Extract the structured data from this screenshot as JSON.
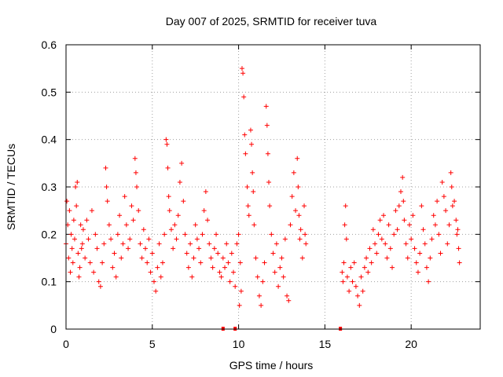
{
  "chart_data": {
    "type": "scatter",
    "title": "Day 007 of 2025, SRMTID for receiver tuva",
    "xlabel": "GPS time / hours",
    "ylabel": "SRMTID / TECUs",
    "xlim": [
      0,
      24
    ],
    "ylim": [
      0,
      0.6
    ],
    "x_ticks": [
      0,
      5,
      10,
      15,
      20
    ],
    "x_tick_labels": [
      "0",
      "5",
      "10",
      "15",
      "20"
    ],
    "y_ticks": [
      0,
      0.1,
      0.2,
      0.3,
      0.4,
      0.5,
      0.6
    ],
    "y_tick_labels": [
      "0",
      "0.1",
      "0.2",
      "0.3",
      "0.4",
      "0.5",
      "0.6"
    ],
    "grid": true,
    "series": [
      {
        "name": "SRMTID",
        "color": "#ff0000",
        "marker": "plus",
        "points": [
          [
            0.0,
            0.18
          ],
          [
            0.05,
            0.27
          ],
          [
            0.1,
            0.22
          ],
          [
            0.15,
            0.15
          ],
          [
            0.2,
            0.25
          ],
          [
            0.25,
            0.12
          ],
          [
            0.3,
            0.2
          ],
          [
            0.35,
            0.17
          ],
          [
            0.4,
            0.14
          ],
          [
            0.45,
            0.23
          ],
          [
            0.5,
            0.19
          ],
          [
            0.55,
            0.3
          ],
          [
            0.6,
            0.26
          ],
          [
            0.65,
            0.31
          ],
          [
            0.7,
            0.16
          ],
          [
            0.75,
            0.11
          ],
          [
            0.8,
            0.13
          ],
          [
            0.85,
            0.22
          ],
          [
            0.9,
            0.17
          ],
          [
            0.95,
            0.18
          ],
          [
            1.0,
            0.21
          ],
          [
            1.1,
            0.15
          ],
          [
            1.2,
            0.23
          ],
          [
            1.3,
            0.19
          ],
          [
            1.4,
            0.14
          ],
          [
            1.5,
            0.25
          ],
          [
            1.6,
            0.12
          ],
          [
            1.7,
            0.2
          ],
          [
            1.8,
            0.17
          ],
          [
            1.9,
            0.1
          ],
          [
            2.0,
            0.09
          ],
          [
            2.1,
            0.14
          ],
          [
            2.2,
            0.18
          ],
          [
            2.3,
            0.34
          ],
          [
            2.35,
            0.3
          ],
          [
            2.4,
            0.27
          ],
          [
            2.5,
            0.22
          ],
          [
            2.6,
            0.19
          ],
          [
            2.7,
            0.13
          ],
          [
            2.8,
            0.16
          ],
          [
            2.9,
            0.11
          ],
          [
            3.0,
            0.2
          ],
          [
            3.1,
            0.24
          ],
          [
            3.2,
            0.15
          ],
          [
            3.3,
            0.18
          ],
          [
            3.4,
            0.28
          ],
          [
            3.5,
            0.22
          ],
          [
            3.6,
            0.17
          ],
          [
            3.7,
            0.19
          ],
          [
            3.8,
            0.26
          ],
          [
            3.9,
            0.23
          ],
          [
            4.0,
            0.36
          ],
          [
            4.05,
            0.33
          ],
          [
            4.1,
            0.3
          ],
          [
            4.2,
            0.25
          ],
          [
            4.3,
            0.18
          ],
          [
            4.4,
            0.15
          ],
          [
            4.5,
            0.21
          ],
          [
            4.6,
            0.17
          ],
          [
            4.7,
            0.14
          ],
          [
            4.8,
            0.19
          ],
          [
            4.9,
            0.12
          ],
          [
            5.0,
            0.16
          ],
          [
            5.1,
            0.1
          ],
          [
            5.2,
            0.08
          ],
          [
            5.3,
            0.13
          ],
          [
            5.4,
            0.18
          ],
          [
            5.5,
            0.11
          ],
          [
            5.6,
            0.14
          ],
          [
            5.7,
            0.2
          ],
          [
            5.8,
            0.4
          ],
          [
            5.85,
            0.39
          ],
          [
            5.9,
            0.34
          ],
          [
            5.95,
            0.28
          ],
          [
            6.0,
            0.25
          ],
          [
            6.1,
            0.21
          ],
          [
            6.2,
            0.17
          ],
          [
            6.3,
            0.22
          ],
          [
            6.4,
            0.19
          ],
          [
            6.5,
            0.24
          ],
          [
            6.6,
            0.31
          ],
          [
            6.7,
            0.35
          ],
          [
            6.8,
            0.27
          ],
          [
            6.9,
            0.2
          ],
          [
            7.0,
            0.16
          ],
          [
            7.1,
            0.13
          ],
          [
            7.2,
            0.18
          ],
          [
            7.3,
            0.11
          ],
          [
            7.4,
            0.15
          ],
          [
            7.5,
            0.22
          ],
          [
            7.6,
            0.19
          ],
          [
            7.7,
            0.17
          ],
          [
            7.8,
            0.14
          ],
          [
            7.9,
            0.2
          ],
          [
            8.0,
            0.25
          ],
          [
            8.1,
            0.29
          ],
          [
            8.2,
            0.23
          ],
          [
            8.3,
            0.18
          ],
          [
            8.4,
            0.15
          ],
          [
            8.5,
            0.13
          ],
          [
            8.6,
            0.17
          ],
          [
            8.7,
            0.2
          ],
          [
            8.8,
            0.16
          ],
          [
            8.9,
            0.12
          ],
          [
            9.0,
            0.11
          ],
          [
            9.1,
            0.15
          ],
          [
            9.2,
            0.13
          ],
          [
            9.3,
            0.18
          ],
          [
            9.4,
            0.14
          ],
          [
            9.5,
            0.1
          ],
          [
            9.6,
            0.16
          ],
          [
            9.7,
            0.12
          ],
          [
            9.8,
            0.09
          ],
          [
            9.9,
            0.18
          ],
          [
            10.0,
            0.2
          ],
          [
            10.05,
            0.05
          ],
          [
            10.1,
            0.14
          ],
          [
            10.15,
            0.08
          ],
          [
            10.2,
            0.55
          ],
          [
            10.25,
            0.54
          ],
          [
            10.3,
            0.49
          ],
          [
            10.35,
            0.41
          ],
          [
            10.4,
            0.37
          ],
          [
            10.5,
            0.3
          ],
          [
            10.55,
            0.26
          ],
          [
            10.6,
            0.24
          ],
          [
            10.7,
            0.42
          ],
          [
            10.75,
            0.39
          ],
          [
            10.8,
            0.33
          ],
          [
            10.85,
            0.29
          ],
          [
            10.9,
            0.22
          ],
          [
            11.0,
            0.15
          ],
          [
            11.1,
            0.11
          ],
          [
            11.2,
            0.07
          ],
          [
            11.3,
            0.05
          ],
          [
            11.4,
            0.1
          ],
          [
            11.5,
            0.14
          ],
          [
            11.6,
            0.47
          ],
          [
            11.65,
            0.43
          ],
          [
            11.7,
            0.37
          ],
          [
            11.75,
            0.31
          ],
          [
            11.8,
            0.26
          ],
          [
            11.9,
            0.2
          ],
          [
            12.0,
            0.16
          ],
          [
            12.1,
            0.12
          ],
          [
            12.2,
            0.18
          ],
          [
            12.3,
            0.09
          ],
          [
            12.4,
            0.13
          ],
          [
            12.5,
            0.15
          ],
          [
            12.6,
            0.11
          ],
          [
            12.7,
            0.19
          ],
          [
            12.8,
            0.07
          ],
          [
            12.9,
            0.06
          ],
          [
            13.0,
            0.22
          ],
          [
            13.1,
            0.28
          ],
          [
            13.2,
            0.33
          ],
          [
            13.3,
            0.25
          ],
          [
            13.4,
            0.36
          ],
          [
            13.45,
            0.3
          ],
          [
            13.5,
            0.24
          ],
          [
            13.55,
            0.19
          ],
          [
            13.6,
            0.21
          ],
          [
            13.7,
            0.15
          ],
          [
            13.8,
            0.26
          ],
          [
            13.85,
            0.2
          ],
          [
            13.9,
            0.18
          ],
          [
            16.0,
            0.12
          ],
          [
            16.05,
            0.1
          ],
          [
            16.1,
            0.14
          ],
          [
            16.15,
            0.22
          ],
          [
            16.2,
            0.26
          ],
          [
            16.25,
            0.19
          ],
          [
            16.3,
            0.11
          ],
          [
            16.4,
            0.08
          ],
          [
            16.5,
            0.13
          ],
          [
            16.6,
            0.1
          ],
          [
            16.7,
            0.14
          ],
          [
            16.8,
            0.09
          ],
          [
            16.9,
            0.07
          ],
          [
            17.0,
            0.05
          ],
          [
            17.1,
            0.11
          ],
          [
            17.2,
            0.08
          ],
          [
            17.3,
            0.13
          ],
          [
            17.4,
            0.15
          ],
          [
            17.5,
            0.12
          ],
          [
            17.6,
            0.17
          ],
          [
            17.7,
            0.14
          ],
          [
            17.8,
            0.21
          ],
          [
            17.9,
            0.18
          ],
          [
            18.0,
            0.16
          ],
          [
            18.1,
            0.2
          ],
          [
            18.2,
            0.23
          ],
          [
            18.3,
            0.19
          ],
          [
            18.4,
            0.24
          ],
          [
            18.5,
            0.18
          ],
          [
            18.6,
            0.15
          ],
          [
            18.7,
            0.22
          ],
          [
            18.8,
            0.17
          ],
          [
            18.9,
            0.13
          ],
          [
            19.0,
            0.2
          ],
          [
            19.1,
            0.25
          ],
          [
            19.2,
            0.21
          ],
          [
            19.3,
            0.26
          ],
          [
            19.4,
            0.29
          ],
          [
            19.5,
            0.32
          ],
          [
            19.55,
            0.27
          ],
          [
            19.6,
            0.23
          ],
          [
            19.7,
            0.18
          ],
          [
            19.8,
            0.15
          ],
          [
            19.9,
            0.22
          ],
          [
            20.0,
            0.19
          ],
          [
            20.1,
            0.24
          ],
          [
            20.2,
            0.17
          ],
          [
            20.3,
            0.14
          ],
          [
            20.4,
            0.12
          ],
          [
            20.5,
            0.16
          ],
          [
            20.6,
            0.26
          ],
          [
            20.7,
            0.21
          ],
          [
            20.8,
            0.18
          ],
          [
            20.9,
            0.13
          ],
          [
            21.0,
            0.1
          ],
          [
            21.1,
            0.15
          ],
          [
            21.2,
            0.19
          ],
          [
            21.3,
            0.24
          ],
          [
            21.4,
            0.22
          ],
          [
            21.5,
            0.27
          ],
          [
            21.6,
            0.2
          ],
          [
            21.7,
            0.16
          ],
          [
            21.8,
            0.31
          ],
          [
            21.9,
            0.28
          ],
          [
            22.0,
            0.25
          ],
          [
            22.1,
            0.18
          ],
          [
            22.2,
            0.22
          ],
          [
            22.3,
            0.33
          ],
          [
            22.35,
            0.3
          ],
          [
            22.4,
            0.26
          ],
          [
            22.5,
            0.27
          ],
          [
            22.6,
            0.23
          ],
          [
            22.65,
            0.2
          ],
          [
            22.7,
            0.21
          ],
          [
            22.75,
            0.17
          ],
          [
            22.8,
            0.14
          ]
        ]
      }
    ],
    "axis_markers": [
      9.1,
      9.8,
      15.9
    ]
  }
}
